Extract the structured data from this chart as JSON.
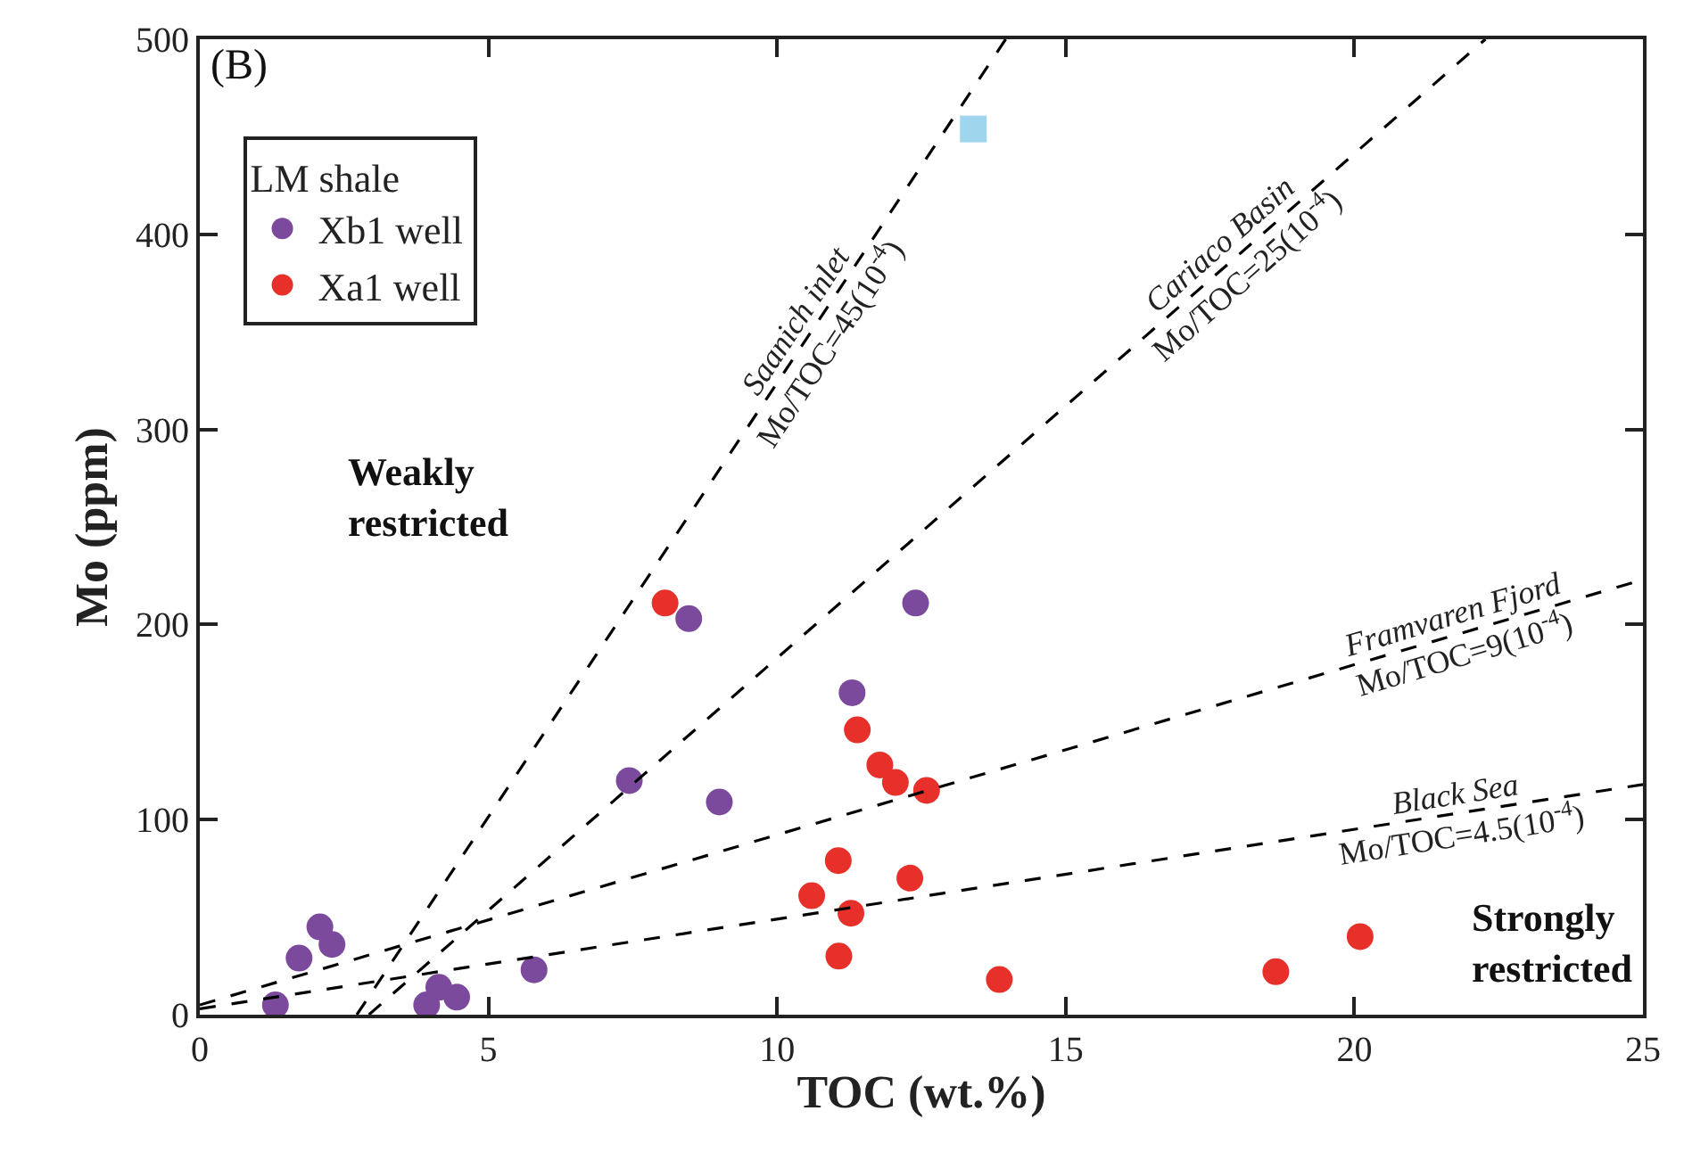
{
  "chart_data": {
    "type": "scatter",
    "xlabel": "TOC (wt.%)",
    "ylabel": "Mo (ppm)",
    "legend_title": "LM shale",
    "legend": "top left",
    "marker": "circle",
    "xlim": [
      0,
      25
    ],
    "xticks": [
      0,
      5,
      10,
      15,
      20,
      25
    ],
    "ylim": [
      0,
      500
    ],
    "yticks": [
      0,
      100,
      200,
      300,
      400,
      500
    ],
    "series": [
      {
        "name": "Xb1 well",
        "color": "#7b4a9c",
        "x": [
          1.31,
          1.72,
          2.08,
          2.29,
          3.93,
          4.14,
          4.45,
          5.79,
          7.44,
          8.47,
          9.0,
          11.3,
          12.4
        ],
        "values": [
          5,
          29,
          45,
          36,
          5,
          14,
          9,
          23,
          120,
          203,
          109,
          165,
          211
        ]
      },
      {
        "name": "Xa1 well",
        "color": "#e8302a",
        "x": [
          8.06,
          11.39,
          11.78,
          12.05,
          12.59,
          11.06,
          12.3,
          10.6,
          11.28,
          11.07,
          13.85,
          18.64,
          20.1
        ],
        "values": [
          211,
          146,
          128,
          119,
          115,
          79,
          70,
          61,
          52,
          30,
          18,
          22,
          40
        ]
      },
      {
        "color": "#9fd6ee",
        "marker": "square",
        "x": [
          13.4
        ],
        "values": [
          454
        ]
      },
      {
        "type": "line",
        "color": "#000000",
        "line_style": "dashed",
        "marker": "none",
        "x": [
          2.72,
          13.96
        ],
        "values": [
          0,
          500
        ]
      },
      {
        "type": "line",
        "color": "#000000",
        "line_style": "dashed",
        "marker": "none",
        "x": [
          2.93,
          22.27
        ],
        "values": [
          0,
          500
        ]
      },
      {
        "type": "line",
        "color": "#000000",
        "line_style": "dashed",
        "marker": "none",
        "x": [
          0,
          25
        ],
        "values": [
          5,
          223
        ]
      },
      {
        "type": "line",
        "color": "#000000",
        "line_style": "dashed",
        "marker": "none",
        "x": [
          0,
          25
        ],
        "values": [
          3,
          118
        ]
      }
    ],
    "annotations": [
      "(B)",
      "Weakly restricted",
      "Strongly restricted",
      {
        "text": "Saanich inlet\nMo/TOC=45(10$^{-4}$)",
        "x": 10.6,
        "y": 350
      },
      {
        "text": "Cariaco Basin\nMo/TOC=25(10$^{-4}$)",
        "x": 17.9,
        "y": 387
      },
      {
        "text": "Framvaren Fjord\nMo/TOC=9(10$^{-4}$)",
        "x": 21.8,
        "y": 195
      },
      {
        "text": "Black Sea\nMo/TOC=4.5(10$^{-4}$)",
        "x": 21.8,
        "y": 103
      }
    ]
  }
}
